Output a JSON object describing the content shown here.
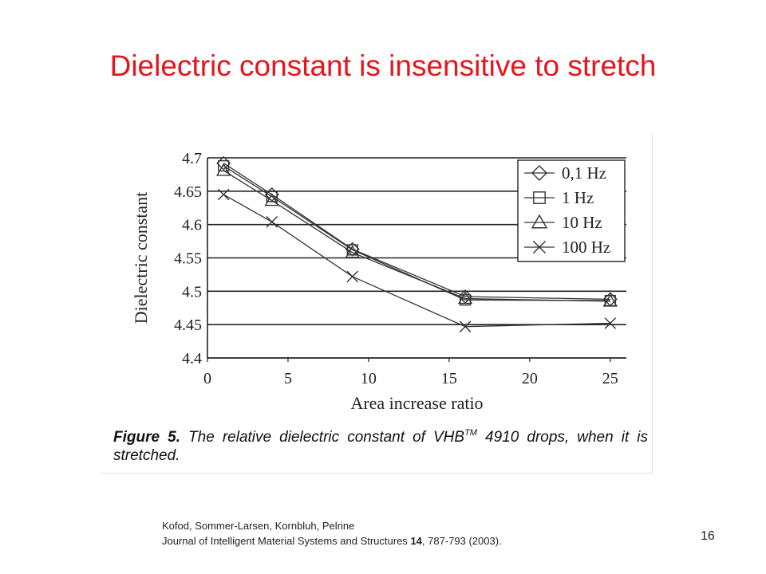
{
  "slide": {
    "title": "Dielectric constant is insensitive to stretch",
    "page_number": "16"
  },
  "caption": {
    "label": "Figure 5.",
    "text_before_sup": "The relative dielectric constant of VHB",
    "superscript": "TM",
    "text_after_sup": "4910 drops, when it is stretched."
  },
  "citation": {
    "authors": "Kofod, Sommer-Larsen, Kornbluh, Pelrine",
    "journal": "Journal of Intelligent Material Systems and Structures",
    "volume": "14",
    "pages_year": ", 787-793 (2003)."
  },
  "chart_data": {
    "type": "line",
    "xlabel": "Area increase ratio",
    "ylabel": "Dielectric constant",
    "xlim": [
      0,
      26
    ],
    "ylim": [
      4.4,
      4.7
    ],
    "x_ticks": [
      "0",
      "5",
      "10",
      "15",
      "20",
      "25"
    ],
    "y_ticks": [
      "4.7",
      "4.65",
      "4.6",
      "4.55",
      "4.5",
      "4.45",
      "4.4"
    ],
    "grid": "horizontal",
    "legend_position": "top-right",
    "color": "#333333",
    "x": [
      1,
      4,
      9,
      16,
      25
    ],
    "series": [
      {
        "name": "0,1 Hz",
        "marker": "diamond",
        "values": [
          4.692,
          4.645,
          4.563,
          4.492,
          4.488
        ]
      },
      {
        "name": "1 Hz",
        "marker": "square",
        "values": [
          4.688,
          4.642,
          4.562,
          4.487,
          4.486
        ]
      },
      {
        "name": "10 Hz",
        "marker": "triangle",
        "values": [
          4.681,
          4.636,
          4.558,
          4.489,
          4.485
        ]
      },
      {
        "name": "100 Hz",
        "marker": "cross",
        "values": [
          4.645,
          4.604,
          4.522,
          4.447,
          4.452
        ]
      }
    ]
  }
}
